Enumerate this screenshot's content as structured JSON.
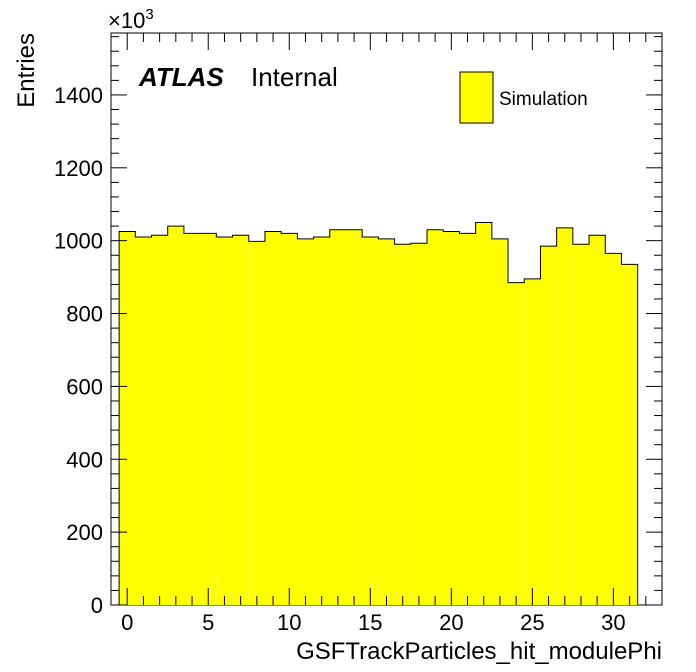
{
  "chart_data": {
    "type": "bar",
    "style": "histogram",
    "fill_color": "#ffff00",
    "line_color": "#000000",
    "x": [
      0,
      1,
      2,
      3,
      4,
      5,
      6,
      7,
      8,
      9,
      10,
      11,
      12,
      13,
      14,
      15,
      16,
      17,
      18,
      19,
      20,
      21,
      22,
      23,
      24,
      25,
      26,
      27,
      28,
      29,
      30,
      31
    ],
    "series": [
      {
        "name": "Simulation",
        "values": [
          1025,
          1010,
          1015,
          1040,
          1020,
          1020,
          1010,
          1015,
          998,
          1025,
          1020,
          1005,
          1010,
          1030,
          1030,
          1010,
          1005,
          990,
          993,
          1030,
          1025,
          1020,
          1050,
          1005,
          885,
          895,
          985,
          1035,
          990,
          1015,
          965,
          935
        ]
      }
    ],
    "xlabel": "GSFTrackParticles_hit_modulePhi",
    "ylabel": "Entries",
    "y_multiplier": {
      "base": "×10",
      "exponent": "3"
    },
    "xlim": [
      -1,
      33
    ],
    "ylim": [
      0,
      1570
    ],
    "x_ticks": [
      0,
      5,
      10,
      15,
      20,
      25,
      30
    ],
    "y_ticks": [
      0,
      200,
      400,
      600,
      800,
      1000,
      1200,
      1400
    ],
    "grid": false,
    "legend_position": "top-right",
    "label": {
      "atlas": "ATLAS",
      "status": "Internal"
    }
  }
}
